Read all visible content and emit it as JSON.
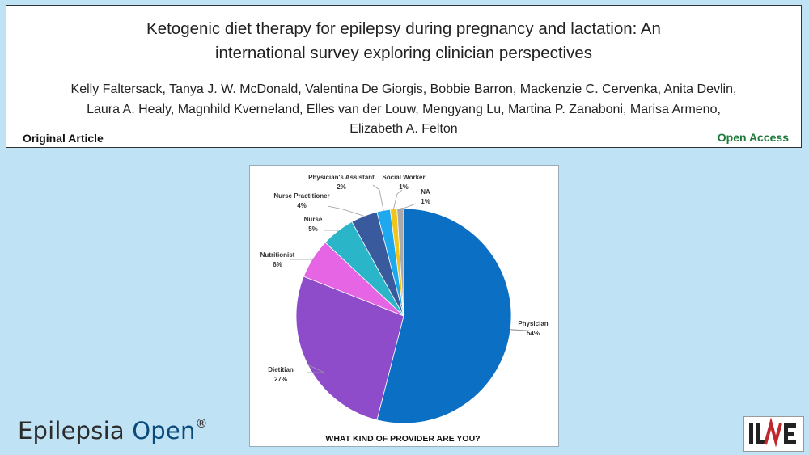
{
  "paper": {
    "title_line1": "Ketogenic diet therapy for epilepsy during pregnancy and lactation: An",
    "title_line2": "international survey exploring clinician perspectives",
    "authors_line1": "Kelly Faltersack, Tanya J. W. McDonald, Valentina De Giorgis, Bobbie Barron, Mackenzie C. Cervenka, Anita Devlin,",
    "authors_line2": "Laura A. Healy, Magnhild Kverneland, Elles van der Louw, Mengyang Lu, Martina P. Zanaboni, Marisa Armeno,",
    "authors_line3": "Elizabeth A. Felton",
    "article_type": "Original Article",
    "access": "Open Access"
  },
  "brand": {
    "journal_part1": "Epilepsia ",
    "journal_part2": "Open",
    "registered": "®",
    "logo_text": "ILAE"
  },
  "chart_data": {
    "type": "pie",
    "title": "WHAT KIND OF PROVIDER ARE YOU?",
    "slices": [
      {
        "label": "Physician",
        "value": 54,
        "pct": "54%",
        "color": "#0b6fc4"
      },
      {
        "label": "Dietitian",
        "value": 27,
        "pct": "27%",
        "color": "#8e4ccb"
      },
      {
        "label": "Nutritionist",
        "value": 6,
        "pct": "6%",
        "color": "#e565e5"
      },
      {
        "label": "Nurse",
        "value": 5,
        "pct": "5%",
        "color": "#2bb5c9"
      },
      {
        "label": "Nurse Practitioner",
        "value": 4,
        "pct": "4%",
        "color": "#3a5a9e"
      },
      {
        "label": "Physician's Assistant",
        "value": 2,
        "pct": "2%",
        "color": "#1ea8ee"
      },
      {
        "label": "Social Worker",
        "value": 1,
        "pct": "1%",
        "color": "#f0c419"
      },
      {
        "label": "NA",
        "value": 1,
        "pct": "1%",
        "color": "#a9a9a9"
      }
    ]
  }
}
